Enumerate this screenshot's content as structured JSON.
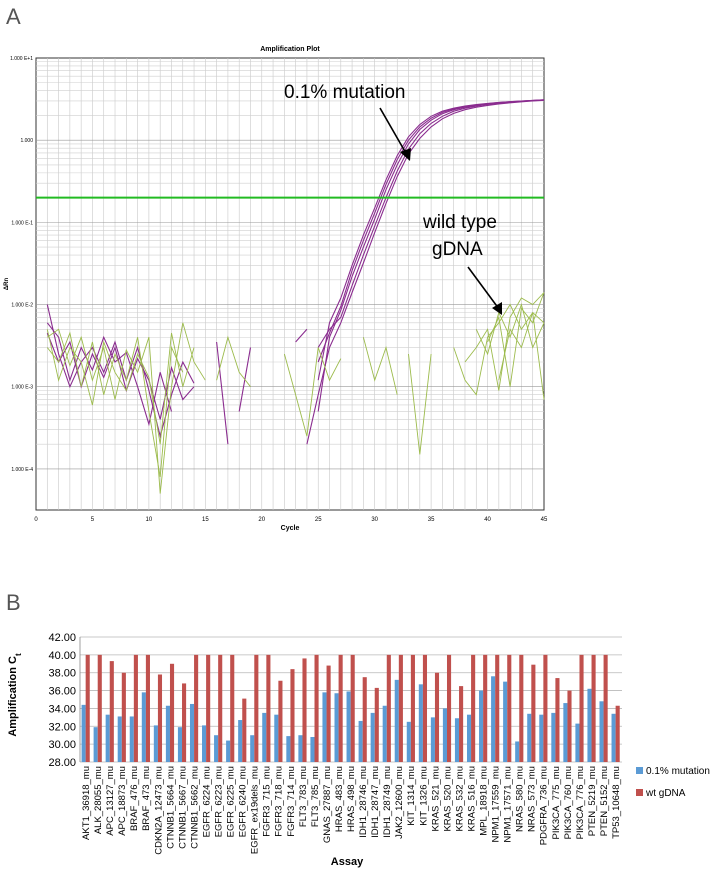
{
  "panels": {
    "a": "A",
    "b": "B"
  },
  "chart_data": [
    {
      "type": "line",
      "title": "Amplification Plot",
      "xlabel": "Cycle",
      "ylabel": "ΔRn",
      "xlim": [
        0,
        45
      ],
      "ylim_log10": [
        -4.5,
        1
      ],
      "yscale": "log",
      "x_ticks": [
        "0",
        "5",
        "10",
        "15",
        "20",
        "25",
        "30",
        "35",
        "40",
        "45"
      ],
      "y_ticks": [
        "1.000 E+1",
        "1.000",
        "1.000 E-1",
        "1.000 E-2",
        "1.000 E-3",
        "1.000 E-4"
      ],
      "threshold": 0.2,
      "grid": true,
      "annotations": [
        "0.1% mutation",
        "wild type gDNA"
      ],
      "series": [
        {
          "group": "mutation",
          "x": [
            1,
            2,
            3,
            4,
            5,
            6,
            7,
            8,
            9,
            10,
            11,
            12,
            13,
            14
          ],
          "y": [
            0.01,
            0.0025,
            0.001,
            0.002,
            0.003,
            0.0015,
            0.0035,
            0.0012,
            0.003,
            0.0009,
            0.00025,
            0.0008,
            0.002,
            0.0011
          ]
        },
        {
          "group": "mutation",
          "x": [
            1,
            2,
            3,
            4,
            5,
            6,
            7,
            8,
            9,
            10,
            11,
            12
          ],
          "y": [
            0.006,
            0.004,
            0.0012,
            0.003,
            0.0016,
            0.004,
            0.002,
            0.0026,
            0.001,
            0.00035,
            0.0015,
            0.0005
          ]
        },
        {
          "group": "mutation",
          "x": [
            1,
            2,
            3,
            4,
            5,
            6,
            7,
            8,
            9,
            10,
            11,
            12,
            13,
            14
          ],
          "y": [
            0.0045,
            0.002,
            0.0035,
            0.001,
            0.0025,
            0.0013,
            0.003,
            0.0009,
            0.0022,
            0.0012,
            0.0004,
            0.0017,
            0.0007,
            0.001
          ]
        },
        {
          "group": "mutation",
          "x": [
            16,
            17
          ],
          "y": [
            0.0035,
            0.0002
          ]
        },
        {
          "group": "mutation",
          "x": [
            18,
            19
          ],
          "y": [
            0.0005,
            0.003
          ]
        },
        {
          "group": "mutation",
          "x": [
            23,
            24
          ],
          "y": [
            0.0035,
            0.005
          ]
        },
        {
          "group": "mutation",
          "x": [
            25,
            26,
            27,
            28,
            29,
            30,
            31,
            32,
            33,
            34,
            35,
            36,
            37,
            38,
            39,
            40,
            41,
            42,
            43,
            44,
            45
          ],
          "y": [
            0.0012,
            0.006,
            0.012,
            0.03,
            0.07,
            0.15,
            0.33,
            0.65,
            1.1,
            1.55,
            1.95,
            2.25,
            2.45,
            2.6,
            2.72,
            2.8,
            2.88,
            2.94,
            3.0,
            3.05,
            3.1
          ]
        },
        {
          "group": "mutation",
          "x": [
            25,
            26,
            27,
            28,
            29,
            30,
            31,
            32,
            33,
            34,
            35,
            36,
            37,
            38,
            39,
            40,
            41,
            42,
            43,
            44,
            45
          ],
          "y": [
            0.0005,
            0.004,
            0.0085,
            0.022,
            0.05,
            0.11,
            0.25,
            0.5,
            0.9,
            1.35,
            1.75,
            2.1,
            2.35,
            2.52,
            2.65,
            2.76,
            2.85,
            2.92,
            2.98,
            3.03,
            3.08
          ]
        },
        {
          "group": "mutation",
          "x": [
            25,
            26,
            27,
            28,
            29,
            30,
            31,
            32,
            33,
            34,
            35,
            36,
            37,
            38,
            39,
            40,
            41,
            42,
            43,
            44,
            45
          ],
          "y": [
            0.003,
            0.005,
            0.007,
            0.017,
            0.04,
            0.09,
            0.2,
            0.42,
            0.78,
            1.2,
            1.6,
            1.95,
            2.25,
            2.45,
            2.6,
            2.72,
            2.82,
            2.9,
            2.96,
            3.02,
            3.07
          ]
        },
        {
          "group": "mutation",
          "x": [
            24,
            25,
            26,
            27,
            28,
            29,
            30,
            31,
            32,
            33,
            34,
            35,
            36,
            37,
            38,
            39,
            40,
            41,
            42,
            43,
            44,
            45
          ],
          "y": [
            0.0002,
            0.0008,
            0.003,
            0.006,
            0.014,
            0.032,
            0.075,
            0.17,
            0.36,
            0.68,
            1.05,
            1.45,
            1.82,
            2.12,
            2.35,
            2.52,
            2.65,
            2.76,
            2.85,
            2.93,
            3.0,
            3.06
          ]
        },
        {
          "group": "mutation",
          "x": [
            25,
            26,
            27,
            28,
            29,
            30,
            31,
            32,
            33,
            34,
            35,
            36,
            37,
            38,
            39,
            40,
            41,
            42,
            43,
            44,
            45
          ],
          "y": [
            0.002,
            0.0045,
            0.0095,
            0.026,
            0.06,
            0.13,
            0.29,
            0.58,
            1.0,
            1.45,
            1.85,
            2.18,
            2.4,
            2.56,
            2.68,
            2.78,
            2.87,
            2.94,
            3.0,
            3.05,
            3.1
          ]
        },
        {
          "group": "wild type",
          "x": [
            1,
            2,
            3,
            4,
            5,
            6,
            7,
            8,
            9,
            10,
            11,
            12,
            13,
            14,
            15
          ],
          "y": [
            0.004,
            0.005,
            0.0018,
            0.004,
            0.0012,
            0.003,
            0.0007,
            0.0028,
            0.0015,
            0.004,
            5e-05,
            0.001,
            0.006,
            0.002,
            0.0012
          ]
        },
        {
          "group": "wild type",
          "x": [
            1,
            2,
            3,
            4,
            5,
            6,
            7,
            8,
            9,
            10,
            11,
            12,
            13
          ],
          "y": [
            0.003,
            0.002,
            0.0045,
            0.001,
            0.0035,
            0.0008,
            0.0025,
            0.0012,
            0.004,
            0.0005,
            8e-05,
            0.003,
            0.0015
          ]
        },
        {
          "group": "wild type",
          "x": [
            1,
            2,
            3,
            4,
            5,
            6,
            7,
            8,
            9,
            10,
            11,
            12,
            13,
            14
          ],
          "y": [
            0.005,
            0.0012,
            0.003,
            0.002,
            0.0006,
            0.0035,
            0.0015,
            0.0009,
            0.0025,
            0.0013,
            0.0002,
            0.0045,
            0.001,
            0.003
          ]
        },
        {
          "group": "wild type",
          "x": [
            16,
            17,
            18,
            19
          ],
          "y": [
            0.0012,
            0.004,
            0.0015,
            0.001
          ]
        },
        {
          "group": "wild type",
          "x": [
            22,
            23,
            24,
            25,
            26,
            27
          ],
          "y": [
            0.0025,
            0.0008,
            0.00025,
            0.003,
            0.0012,
            0.0022
          ]
        },
        {
          "group": "wild type",
          "x": [
            29,
            30,
            31,
            32
          ],
          "y": [
            0.004,
            0.0012,
            0.003,
            0.0008
          ]
        },
        {
          "group": "wild type",
          "x": [
            33,
            34,
            35
          ],
          "y": [
            0.0025,
            0.00015,
            0.0025
          ]
        },
        {
          "group": "wild type",
          "x": [
            37,
            38,
            39,
            40,
            41,
            42,
            43,
            44,
            45
          ],
          "y": [
            0.003,
            0.0012,
            0.0008,
            0.004,
            0.006,
            0.01,
            0.005,
            0.008,
            0.006
          ]
        },
        {
          "group": "wild type",
          "x": [
            38,
            39,
            40,
            41,
            42,
            43,
            44,
            45
          ],
          "y": [
            0.002,
            0.003,
            0.005,
            0.0009,
            0.007,
            0.012,
            0.01,
            0.014
          ]
        },
        {
          "group": "wild type",
          "x": [
            39,
            40,
            41,
            42,
            43,
            44,
            45
          ],
          "y": [
            0.005,
            0.0025,
            0.008,
            0.004,
            0.01,
            0.003,
            0.006
          ]
        },
        {
          "group": "wild type",
          "x": [
            40,
            41,
            42,
            43,
            44,
            45
          ],
          "y": [
            0.0035,
            0.007,
            0.001,
            0.009,
            0.006,
            0.014
          ]
        },
        {
          "group": "wild type",
          "x": [
            41,
            42,
            43,
            44,
            45
          ],
          "y": [
            0.0012,
            0.005,
            0.003,
            0.008,
            0.0007
          ]
        }
      ]
    },
    {
      "type": "bar",
      "xlabel": "Assay",
      "ylabel": "Amplification C",
      "ylabel_sub": "t",
      "ylim": [
        28,
        42
      ],
      "y_ticks": [
        "28.00",
        "30.00",
        "32.00",
        "34.00",
        "36.00",
        "38.00",
        "40.00",
        "42.00"
      ],
      "grid": true,
      "legend_position": "right",
      "categories": [
        "AKT1_36918_mu",
        "ALK_28055_mu",
        "APC_13127_mu",
        "APC_18873_mu",
        "BRAF_476_mu",
        "BRAF_473_mu",
        "CDKN2A_12473_mu",
        "CTNNB1_5664_mu",
        "CTNNB1_5667_mu",
        "CTNNB1_5662_mu",
        "EGFR_6224_mu",
        "EGFR_6223_mu",
        "EGFR_6225_mu",
        "EGFR_6240_mu",
        "EGFR_ex19dels_mu",
        "FGFR3_715_mu",
        "FGFR3_718_mu",
        "FGFR3_714_mu",
        "FLT3_783_mu",
        "FLT3_785_mu",
        "GNAS_27887_mu",
        "HRAS_483_mu",
        "HRAS_498_mu",
        "IDH1_28746_mu",
        "IDH1_28747_mu",
        "IDH1_28749_mu",
        "JAK2_12600_mu",
        "KIT_1314_mu",
        "KIT_1326_mu",
        "KRAS_521_mu",
        "KRAS_520_mu",
        "KRAS_532_mu",
        "KRAS_516_mu",
        "MPL_18918_mu",
        "NPM1_17559_mu",
        "NPM1_17571_mu",
        "NRAS_580_mu",
        "NRAS_573_mu",
        "PDGFRA_736_mu",
        "PIK3CA_775_mu",
        "PIK3CA_760_mu",
        "PIK3CA_776_mu",
        "PTEN_5219_mu",
        "PTEN_5152_mu",
        "TP53_10648_mu"
      ],
      "series": [
        {
          "name": "0.1% mutation",
          "color": "#5b9bd5",
          "values": [
            34.4,
            31.9,
            33.3,
            33.1,
            33.1,
            35.8,
            32.1,
            34.3,
            31.9,
            34.5,
            32.1,
            31.0,
            30.4,
            32.7,
            31.0,
            33.5,
            33.3,
            30.9,
            31.0,
            30.8,
            35.8,
            35.7,
            35.9,
            32.6,
            33.5,
            34.3,
            37.2,
            32.5,
            36.7,
            33.0,
            34.0,
            32.9,
            33.3,
            36.0,
            37.6,
            37.0,
            30.3,
            33.4,
            33.3,
            33.5,
            34.6,
            32.3,
            36.2,
            34.8,
            33.4
          ]
        },
        {
          "name": "wt gDNA",
          "color": "#c0504d",
          "values": [
            40.0,
            40.0,
            39.3,
            38.0,
            40.0,
            40.0,
            37.8,
            39.0,
            36.8,
            40.0,
            40.0,
            40.0,
            40.0,
            35.1,
            40.0,
            40.0,
            37.1,
            38.4,
            39.6,
            40.0,
            38.8,
            40.0,
            40.0,
            37.5,
            36.3,
            40.0,
            40.0,
            40.0,
            40.0,
            38.0,
            40.0,
            36.5,
            40.0,
            40.0,
            40.0,
            40.0,
            40.0,
            38.9,
            40.0,
            37.4,
            36.0,
            40.0,
            40.0,
            40.0,
            34.3
          ]
        }
      ]
    }
  ]
}
